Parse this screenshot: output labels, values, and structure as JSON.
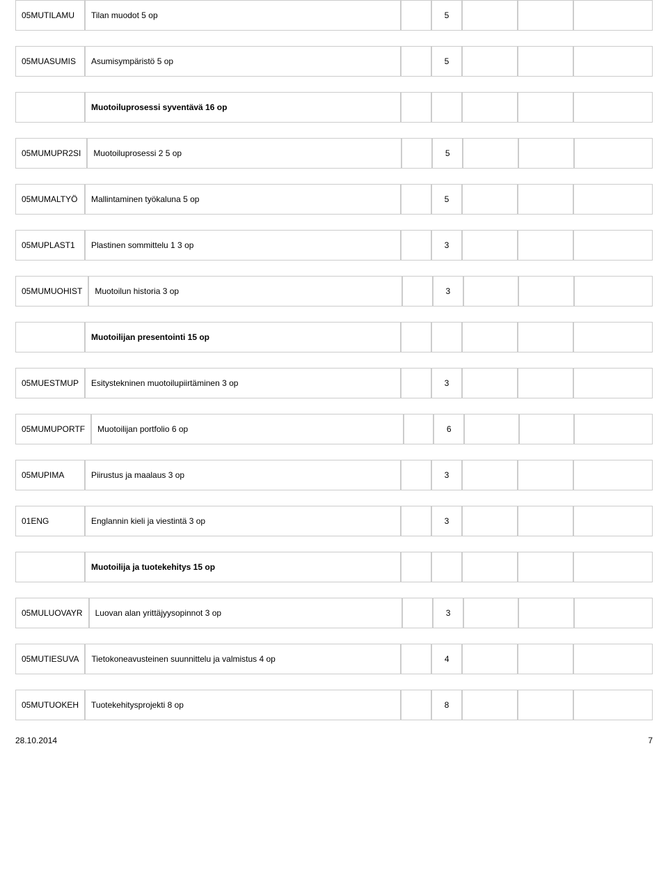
{
  "rows": [
    {
      "code": "05MUTILAMU",
      "desc": "Tilan muodot 5 op",
      "val": "5",
      "header": false,
      "codeBold": false,
      "descBold": false,
      "col": "main"
    },
    {
      "code": "05MUASUMIS",
      "desc": "Asumisympäristö 5 op",
      "val": "5",
      "header": false,
      "codeBold": false,
      "descBold": false,
      "col": "main"
    },
    {
      "code": "",
      "desc": "Muotoiluprosessi syventävä 16 op",
      "val": "",
      "header": true,
      "codeBold": false,
      "descBold": true,
      "col": "main"
    },
    {
      "code": "05MUMUPR2SI",
      "desc": "Muotoiluprosessi 2 5 op",
      "val": "5",
      "header": false,
      "codeBold": false,
      "descBold": false,
      "col": "main"
    },
    {
      "code": "05MUMALTYÖ",
      "desc": "Mallintaminen työkaluna 5 op",
      "val": "5",
      "header": false,
      "codeBold": false,
      "descBold": false,
      "col": "main"
    },
    {
      "code": "05MUPLAST1",
      "desc": "Plastinen sommittelu 1 3 op",
      "val": "3",
      "header": false,
      "codeBold": false,
      "descBold": false,
      "col": "main"
    },
    {
      "code": "05MUMUOHIST",
      "desc": "Muotoilun historia 3 op",
      "val": "3",
      "header": false,
      "codeBold": false,
      "descBold": false,
      "col": "main"
    },
    {
      "code": "",
      "desc": "Muotoilijan presentointi 15 op",
      "val": "",
      "header": true,
      "codeBold": false,
      "descBold": true,
      "col": "main"
    },
    {
      "code": "05MUESTMUP",
      "desc": "Esitystekninen muotoilupiirtäminen 3 op",
      "val": "3",
      "header": false,
      "codeBold": false,
      "descBold": false,
      "col": "main"
    },
    {
      "code": "05MUMUPORTF",
      "desc": "Muotoilijan portfolio 6 op",
      "val": "6",
      "header": false,
      "codeBold": false,
      "descBold": false,
      "col": "main"
    },
    {
      "code": "05MUPIMA",
      "desc": "Piirustus ja maalaus 3 op",
      "val": "3",
      "header": false,
      "codeBold": false,
      "descBold": false,
      "col": "main"
    },
    {
      "code": "01ENG",
      "desc": "Englannin kieli ja viestintä 3 op",
      "val": "3",
      "header": false,
      "codeBold": false,
      "descBold": false,
      "col": "main"
    },
    {
      "code": "",
      "desc": "Muotoilija ja tuotekehitys 15 op",
      "val": "",
      "header": true,
      "codeBold": false,
      "descBold": true,
      "col": "main"
    },
    {
      "code": "05MULUOVAYR",
      "desc": "Luovan alan yrittäjyysopinnot 3 op",
      "val": "3",
      "header": false,
      "codeBold": false,
      "descBold": false,
      "col": "main"
    },
    {
      "code": "05MUTIESUVA",
      "desc": "Tietokoneavusteinen suunnittelu ja valmistus 4 op",
      "val": "4",
      "header": false,
      "codeBold": false,
      "descBold": false,
      "col": "main"
    },
    {
      "code": "05MUTUOKEH",
      "desc": "Tuotekehitysprojekti 8 op",
      "val": "8",
      "header": false,
      "codeBold": false,
      "descBold": false,
      "col": "main"
    }
  ],
  "footer": {
    "date": "28.10.2014",
    "page": "7"
  },
  "colors": {
    "headerBg": "#d3e3f3",
    "border": "#cccccc",
    "background": "#ffffff"
  }
}
